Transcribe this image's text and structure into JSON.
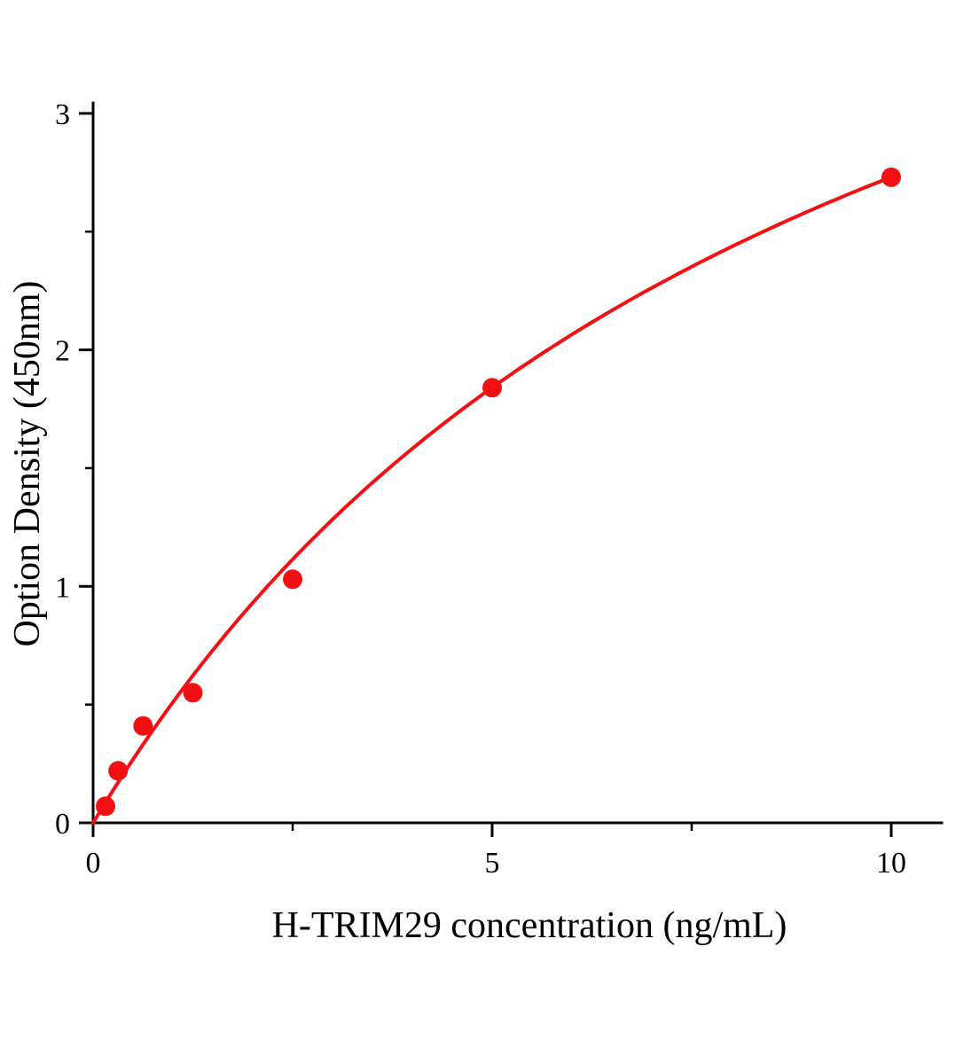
{
  "chart_data": {
    "type": "scatter",
    "title": "",
    "xlabel": "H-TRIM29 concentration (ng/mL)",
    "ylabel": "Option Density (450nm)",
    "x": [
      0.156,
      0.313,
      0.625,
      1.25,
      2.5,
      5,
      10
    ],
    "y": [
      0.07,
      0.22,
      0.41,
      0.55,
      1.03,
      1.84,
      2.73
    ],
    "xlim": [
      0,
      10.65
    ],
    "ylim": [
      0,
      3.05
    ],
    "x_major_ticks": [
      0,
      5,
      10
    ],
    "x_minor_ticks": [
      2.5,
      7.5
    ],
    "y_major_ticks": [
      0,
      1,
      2,
      3
    ],
    "y_minor_ticks": [
      0.5,
      1.5,
      2.5
    ],
    "grid": false,
    "legend": "none",
    "marker_color": "#f40f12",
    "line_color": "#f40f12",
    "axis_color": "#000000",
    "fit_curve": {
      "type": "michaelis-menten",
      "vmax": 5.29,
      "k": 9.37,
      "x_range": [
        0,
        10
      ]
    }
  }
}
